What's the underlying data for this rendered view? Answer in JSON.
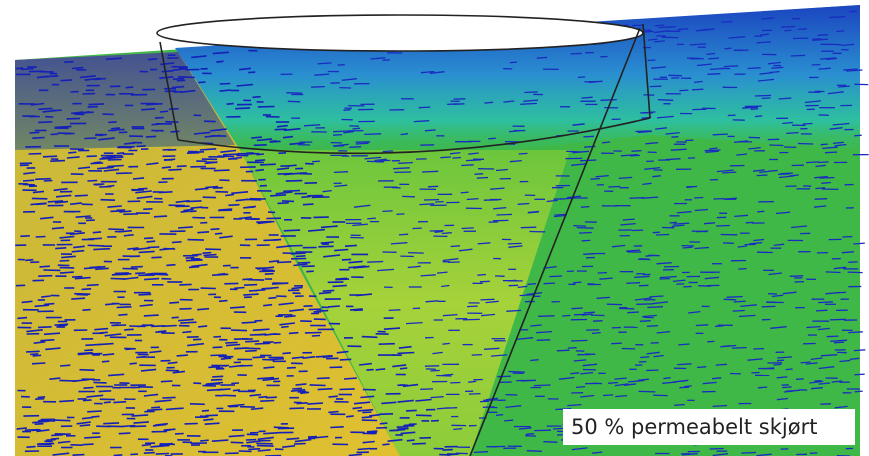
{
  "label": "50 % permeabelt skjørt"
}
